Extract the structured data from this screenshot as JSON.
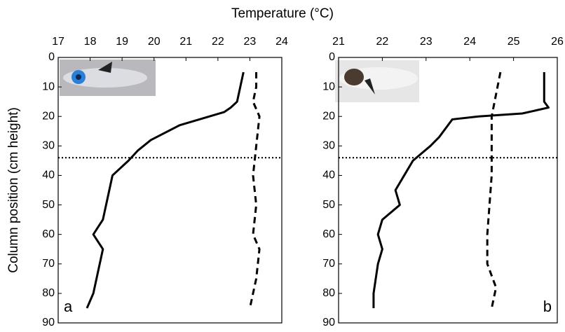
{
  "chart_data": [
    {
      "type": "line",
      "xlabel": "Temperature (°C)",
      "ylabel": "Column position (cm height)",
      "panel_label": "a",
      "xlim": [
        17,
        24
      ],
      "xticks": [
        17,
        18,
        19,
        20,
        21,
        22,
        23,
        24
      ],
      "ylim": [
        0,
        90
      ],
      "yticks": [
        0,
        10,
        20,
        30,
        40,
        50,
        60,
        70,
        80,
        90
      ],
      "y_inverted": true,
      "reference_line": {
        "value": 34,
        "style": "dotted"
      },
      "series": [
        {
          "color": "#000",
          "style": "solid",
          "x": [
            22.8,
            22.7,
            22.6,
            22.4,
            22.2,
            20.8,
            19.9,
            19.5,
            19.2,
            18.7,
            18.6,
            18.4,
            18.1,
            18.4,
            18.3,
            18.1,
            17.9
          ],
          "y": [
            5,
            10,
            15,
            17,
            18.5,
            23,
            28,
            31.5,
            35,
            40,
            45,
            55,
            60,
            65,
            70,
            80,
            85
          ]
        },
        {
          "color": "#000",
          "style": "dashed",
          "x": [
            23.2,
            23.2,
            23.1,
            23.3,
            23.2,
            23.1,
            23.2,
            23.1,
            23.3,
            23.2,
            23.0
          ],
          "y": [
            5,
            10,
            15,
            20,
            30,
            40,
            50,
            60,
            65,
            75,
            85
          ]
        }
      ]
    },
    {
      "type": "line",
      "panel_label": "b",
      "xlim": [
        21,
        26
      ],
      "xticks": [
        21,
        22,
        23,
        24,
        25,
        26
      ],
      "ylim": [
        0,
        90
      ],
      "yticks": [
        0,
        10,
        20,
        30,
        40,
        50,
        60,
        70,
        80,
        90
      ],
      "y_inverted": true,
      "reference_line": {
        "value": 34,
        "style": "dotted"
      },
      "series": [
        {
          "color": "#000",
          "style": "solid",
          "x": [
            25.7,
            25.7,
            25.8,
            25.2,
            24.2,
            23.6,
            23.5,
            23.3,
            23.1,
            22.7,
            22.5,
            22.3,
            22.4,
            22.0,
            21.9,
            22.0,
            21.9,
            21.8,
            21.8
          ],
          "y": [
            5,
            15,
            17,
            19,
            20,
            21,
            23,
            27,
            30,
            35,
            40,
            45,
            50,
            55,
            60,
            65,
            70,
            80,
            85
          ]
        },
        {
          "color": "#000",
          "style": "dashed",
          "x": [
            24.7,
            24.5,
            24.5,
            24.4,
            24.4,
            24.6,
            24.5
          ],
          "y": [
            5,
            20,
            40,
            60,
            70,
            78,
            85
          ]
        }
      ]
    }
  ]
}
